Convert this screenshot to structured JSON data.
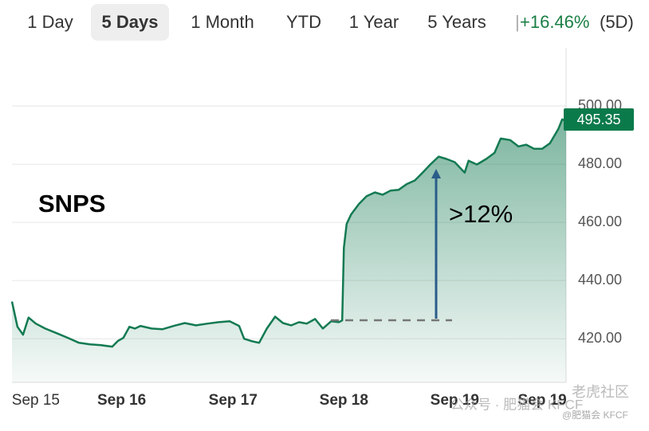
{
  "tabs": [
    "1 Day",
    "5 Days",
    "1 Month",
    "YTD",
    "1 Year",
    "5 Years"
  ],
  "change": "+16.46%",
  "period": "(5D)",
  "watermark": [
    "老虎社区",
    "公众号 · 肥猫会 KFCF",
    "@肥猫会 KFCF"
  ],
  "chart_data": {
    "type": "line",
    "title": "SNPS",
    "annotation": ">12%",
    "color": "#137a52",
    "last_price": 495.35,
    "x": [
      0,
      1.0,
      2.0,
      3.0,
      4.3,
      6.0,
      8.1,
      10.1,
      12.1,
      14.1,
      16.1,
      18.1,
      19.1,
      20.1,
      21.2,
      22.2,
      23.2,
      25.2,
      27.2,
      29.2,
      31.2,
      33.2,
      35.3,
      37.3,
      39.3,
      41.0,
      41.9,
      43.2,
      44.6,
      46.0,
      47.5,
      48.9,
      50.4,
      51.8,
      53.2,
      54.7,
      56.1,
      57.6,
      59.0,
      59.6,
      59.9,
      60.4,
      61.2,
      62.6,
      64.0,
      65.5,
      66.9,
      68.3,
      69.8,
      71.2,
      72.7,
      74.1,
      75.5,
      77.0,
      78.4,
      79.9,
      81.0,
      81.7,
      82.4,
      83.9,
      85.6,
      87.1,
      88.2,
      89.9,
      91.4,
      92.8,
      94.2,
      95.7,
      97.1,
      98.6,
      99.3,
      100
    ],
    "values": [
      432.8,
      424.1,
      421.4,
      427.3,
      425.2,
      423.5,
      421.9,
      420.3,
      418.6,
      418.1,
      417.8,
      417.3,
      419.2,
      420.3,
      424.1,
      423.5,
      424.4,
      423.5,
      423.3,
      424.4,
      425.4,
      424.6,
      425.2,
      425.7,
      426.0,
      424.4,
      420.0,
      419.2,
      418.6,
      423.5,
      427.6,
      425.4,
      424.6,
      425.7,
      425.2,
      426.8,
      423.5,
      426.0,
      425.7,
      426.3,
      451.3,
      459.5,
      462.7,
      466.3,
      469.0,
      470.3,
      469.5,
      470.9,
      471.2,
      473.1,
      474.4,
      477.1,
      479.9,
      482.6,
      481.8,
      480.7,
      478.5,
      477.1,
      481.2,
      479.9,
      481.8,
      483.9,
      488.8,
      488.3,
      486.1,
      486.7,
      485.3,
      485.3,
      487.2,
      492.1,
      495.4,
      494.8
    ],
    "xlim": [
      0,
      100
    ],
    "xticks": [
      {
        "value": 4.3,
        "label": "Sep 15"
      },
      {
        "value": 19.8,
        "label": "Sep 16"
      },
      {
        "value": 39.9,
        "label": "Sep 17"
      },
      {
        "value": 59.9,
        "label": "Sep 18"
      },
      {
        "value": 79.9,
        "label": "Sep 19"
      },
      {
        "value": 95.7,
        "label": "Sep 19"
      }
    ],
    "ylim": [
      405,
      520
    ],
    "yticks": [
      {
        "value": 420,
        "label": "420.00"
      },
      {
        "value": 440,
        "label": "440.00"
      },
      {
        "value": 460,
        "label": "460.00"
      },
      {
        "value": 480,
        "label": "480.00"
      },
      {
        "value": 500,
        "label": "500.00"
      }
    ],
    "grid": true
  }
}
